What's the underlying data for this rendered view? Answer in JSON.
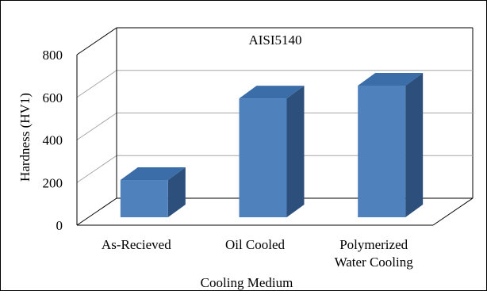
{
  "chart_data": {
    "type": "bar",
    "title": "AISI5140",
    "xlabel": "Cooling Medium",
    "ylabel": "Hardness (HV1)",
    "categories": [
      [
        "As-Recieved"
      ],
      [
        "Oil Cooled"
      ],
      [
        "Polymerized",
        "Water Cooling"
      ]
    ],
    "values": [
      212,
      595,
      655
    ],
    "ylim": [
      0,
      800
    ],
    "yticks": [
      0,
      200,
      400,
      600,
      800
    ],
    "grid": true,
    "legend": "none",
    "style": "3d-column",
    "colors": {
      "bar_front": "#4f81bd",
      "bar_top": "#3b6ea8",
      "bar_side": "#2c4f7c",
      "grid": "#a6a6a6",
      "axis": "#000000"
    }
  }
}
